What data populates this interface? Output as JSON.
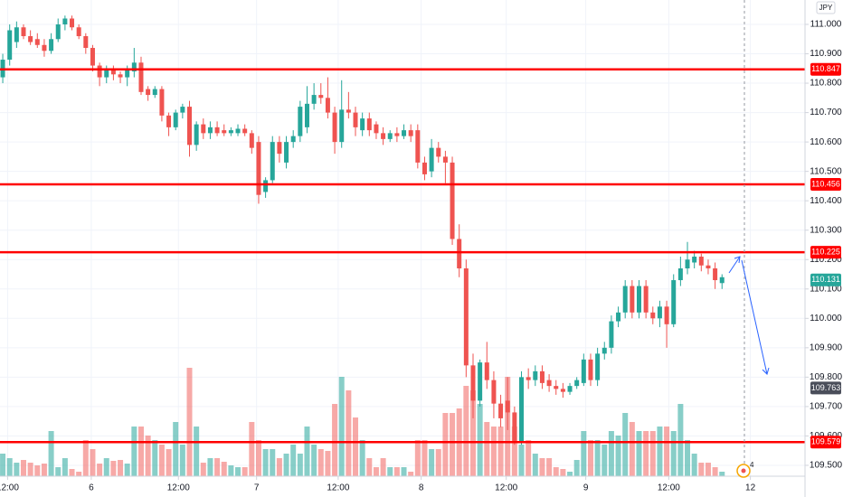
{
  "chart_data": {
    "type": "candlestick",
    "currency": "JPY",
    "badge": "4",
    "xlim": [
      -0.4,
      116
    ],
    "ylim": [
      109.463,
      111.083
    ],
    "vlim": [
      0,
      130
    ],
    "grid": true,
    "up_color": "#26a69a",
    "down_color": "#ef5350",
    "volume_up_color": "rgba(38,166,154,0.55)",
    "volume_down_color": "rgba(239,83,80,0.5)",
    "level_color": "#ff0000",
    "yticks": [
      {
        "value": 109.5,
        "label": "109.500"
      },
      {
        "value": 109.6,
        "label": "109.600"
      },
      {
        "value": 109.7,
        "label": "109.700"
      },
      {
        "value": 109.8,
        "label": "109.800"
      },
      {
        "value": 109.9,
        "label": "109.900"
      },
      {
        "value": 110.0,
        "label": "110.000"
      },
      {
        "value": 110.1,
        "label": "110.100"
      },
      {
        "value": 110.2,
        "label": "110.200"
      },
      {
        "value": 110.3,
        "label": "110.300"
      },
      {
        "value": 110.4,
        "label": "110.400"
      },
      {
        "value": 110.5,
        "label": "110.500"
      },
      {
        "value": 110.6,
        "label": "110.600"
      },
      {
        "value": 110.7,
        "label": "110.700"
      },
      {
        "value": 110.8,
        "label": "110.800"
      },
      {
        "value": 110.9,
        "label": "110.900"
      },
      {
        "value": 111.0,
        "label": "111.000"
      }
    ],
    "xticks": [
      {
        "value": 0.7,
        "label": "12:00"
      },
      {
        "value": 12.8,
        "label": "6"
      },
      {
        "value": 25.4,
        "label": "12:00"
      },
      {
        "value": 36.7,
        "label": "7"
      },
      {
        "value": 48.5,
        "label": "12:00"
      },
      {
        "value": 60.5,
        "label": "8"
      },
      {
        "value": 72.8,
        "label": "12:00"
      },
      {
        "value": 84.3,
        "label": "9"
      },
      {
        "value": 96.3,
        "label": "12:00"
      },
      {
        "value": 108.1,
        "label": "12"
      }
    ],
    "levels": [
      110.847,
      110.456,
      110.225,
      109.579
    ],
    "last_price": 110.131,
    "marker_price": 109.763,
    "open": [
      110.82,
      110.88,
      110.94,
      110.99,
      110.96,
      110.95,
      110.93,
      110.91,
      110.95,
      111.0,
      111.02,
      110.99,
      110.96,
      110.92,
      110.86,
      110.82,
      110.85,
      110.83,
      110.82,
      110.84,
      110.87,
      110.78,
      110.76,
      110.78,
      110.69,
      110.65,
      110.7,
      110.72,
      110.59,
      110.66,
      110.63,
      110.65,
      110.64,
      110.63,
      110.63,
      110.645,
      110.63,
      110.6,
      110.43,
      110.47,
      110.6,
      110.53,
      110.6,
      110.62,
      110.65,
      110.73,
      110.76,
      110.75,
      110.7,
      110.6,
      110.71,
      110.7,
      110.64,
      110.68,
      110.66,
      110.63,
      110.61,
      110.63,
      110.62,
      110.64,
      110.64,
      110.53,
      110.5,
      110.58,
      110.55,
      110.53,
      110.27,
      110.17,
      109.84,
      109.72,
      109.85,
      109.79,
      109.71,
      109.72,
      109.68,
      109.58,
      109.8,
      109.79,
      109.82,
      109.79,
      109.77,
      109.76,
      109.75,
      109.77,
      109.78,
      109.86,
      109.79,
      109.88,
      109.9,
      109.99,
      110.02,
      110.11,
      110.02,
      110.11,
      110.02,
      110.0,
      110.04,
      109.98,
      110.13,
      110.17,
      110.19,
      110.21,
      110.18,
      110.17,
      110.12
    ],
    "high": [
      110.9,
      111.0,
      111.01,
      111.0,
      110.98,
      110.97,
      110.95,
      110.97,
      111.02,
      111.03,
      111.03,
      111.0,
      110.97,
      110.93,
      110.87,
      110.86,
      110.86,
      110.84,
      110.86,
      110.92,
      110.89,
      110.79,
      110.79,
      110.79,
      110.7,
      110.71,
      110.73,
      110.74,
      110.67,
      110.68,
      110.67,
      110.67,
      110.66,
      110.65,
      110.66,
      110.66,
      110.64,
      110.62,
      110.48,
      110.62,
      110.62,
      110.62,
      110.64,
      110.74,
      110.79,
      110.8,
      110.8,
      110.82,
      110.72,
      110.81,
      110.77,
      110.72,
      110.7,
      110.7,
      110.67,
      110.65,
      110.64,
      110.65,
      110.66,
      110.66,
      110.66,
      110.55,
      110.61,
      110.6,
      110.57,
      110.55,
      110.32,
      110.2,
      109.88,
      109.86,
      109.92,
      109.82,
      109.74,
      109.8,
      109.7,
      109.82,
      109.83,
      109.84,
      109.84,
      109.81,
      109.79,
      109.78,
      109.78,
      109.8,
      109.88,
      109.88,
      109.9,
      109.92,
      110.01,
      110.04,
      110.13,
      110.13,
      110.13,
      110.13,
      110.04,
      110.06,
      110.06,
      110.15,
      110.21,
      110.26,
      110.23,
      110.22,
      110.2,
      110.19,
      110.15
    ],
    "low": [
      110.8,
      110.86,
      110.92,
      110.95,
      110.93,
      110.92,
      110.89,
      110.9,
      110.94,
      110.98,
      110.98,
      110.95,
      110.9,
      110.84,
      110.79,
      110.8,
      110.81,
      110.8,
      110.79,
      110.82,
      110.76,
      110.74,
      110.75,
      110.67,
      110.62,
      110.64,
      110.68,
      110.55,
      110.57,
      110.61,
      110.61,
      110.62,
      110.62,
      110.62,
      110.62,
      110.62,
      110.56,
      110.39,
      110.41,
      110.46,
      110.53,
      110.51,
      110.58,
      110.6,
      110.63,
      110.71,
      110.73,
      110.68,
      110.56,
      110.58,
      110.68,
      110.62,
      110.62,
      110.62,
      110.61,
      110.59,
      110.6,
      110.6,
      110.61,
      110.6,
      110.51,
      110.47,
      110.48,
      110.53,
      110.46,
      110.25,
      110.14,
      109.8,
      109.66,
      109.7,
      109.76,
      109.66,
      109.63,
      109.62,
      109.57,
      109.57,
      109.76,
      109.77,
      109.76,
      109.75,
      109.74,
      109.73,
      109.74,
      109.76,
      109.77,
      109.77,
      109.77,
      109.86,
      109.88,
      109.97,
      110.0,
      110.0,
      110.0,
      110.0,
      109.98,
      109.97,
      109.9,
      109.97,
      110.11,
      110.15,
      110.17,
      110.16,
      110.15,
      110.1,
      110.1
    ],
    "close": [
      110.88,
      110.98,
      110.99,
      110.96,
      110.94,
      110.93,
      110.91,
      110.95,
      111.0,
      111.02,
      110.99,
      110.96,
      110.92,
      110.86,
      110.82,
      110.85,
      110.83,
      110.82,
      110.85,
      110.87,
      110.77,
      110.76,
      110.78,
      110.69,
      110.65,
      110.7,
      110.72,
      110.59,
      110.66,
      110.63,
      110.65,
      110.63,
      110.63,
      110.64,
      110.645,
      110.63,
      110.58,
      110.42,
      110.47,
      110.6,
      110.56,
      110.6,
      110.62,
      110.72,
      110.73,
      110.76,
      110.75,
      110.7,
      110.6,
      110.71,
      110.7,
      110.65,
      110.68,
      110.64,
      110.63,
      110.61,
      110.63,
      110.62,
      110.64,
      110.62,
      110.53,
      110.49,
      110.58,
      110.55,
      110.53,
      110.27,
      110.17,
      109.84,
      109.72,
      109.85,
      109.79,
      109.71,
      109.66,
      109.68,
      109.58,
      109.8,
      109.79,
      109.82,
      109.78,
      109.77,
      109.76,
      109.75,
      109.77,
      109.79,
      109.86,
      109.79,
      109.88,
      109.9,
      109.99,
      110.02,
      110.11,
      110.02,
      110.11,
      110.02,
      110.0,
      110.04,
      109.98,
      110.13,
      110.17,
      110.2,
      110.21,
      110.18,
      110.17,
      110.13,
      110.14
    ],
    "volume": [
      25,
      20,
      15,
      18,
      15,
      12,
      14,
      50,
      10,
      20,
      8,
      5,
      40,
      30,
      14,
      20,
      17,
      18,
      14,
      55,
      55,
      45,
      40,
      35,
      30,
      60,
      35,
      120,
      55,
      15,
      20,
      20,
      16,
      12,
      10,
      10,
      60,
      40,
      30,
      30,
      20,
      25,
      35,
      25,
      55,
      35,
      30,
      28,
      80,
      110,
      95,
      65,
      40,
      20,
      10,
      20,
      10,
      10,
      10,
      5,
      40,
      40,
      30,
      30,
      70,
      70,
      75,
      100,
      95,
      80,
      60,
      55,
      55,
      110,
      55,
      35,
      40,
      25,
      20,
      20,
      10,
      8,
      5,
      18,
      50,
      40,
      40,
      35,
      50,
      45,
      70,
      60,
      50,
      50,
      50,
      55,
      55,
      50,
      80,
      40,
      25,
      15,
      15,
      10,
      5
    ]
  }
}
